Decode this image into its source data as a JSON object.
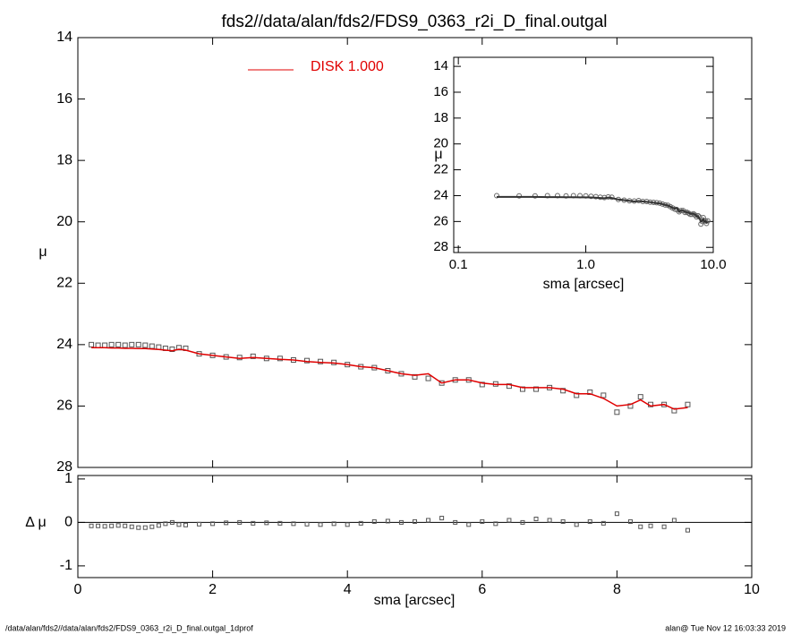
{
  "chart_data": [
    {
      "type": "line",
      "title": "fds2//data/alan/fds2/FDS9_0363_r2i_D_final.outgal",
      "ylabel": "μ",
      "x": [
        0.2,
        0.3,
        0.4,
        0.5,
        0.6,
        0.7,
        0.8,
        0.9,
        1.0,
        1.1,
        1.2,
        1.3,
        1.4,
        1.5,
        1.6,
        1.8,
        2.0,
        2.2,
        2.4,
        2.6,
        2.8,
        3.0,
        3.2,
        3.4,
        3.6,
        3.8,
        4.0,
        4.2,
        4.4,
        4.6,
        4.8,
        5.0,
        5.2,
        5.4,
        5.6,
        5.8,
        6.0,
        6.2,
        6.4,
        6.6,
        6.8,
        7.0,
        7.2,
        7.4,
        7.6,
        7.8,
        8.0,
        8.2,
        8.35,
        8.5,
        8.7,
        8.85,
        9.05
      ],
      "series": [
        {
          "color": "#555555",
          "marker": "square",
          "values": [
            24.0,
            24.02,
            24.02,
            24.0,
            24.0,
            24.02,
            24.0,
            24.0,
            24.02,
            24.05,
            24.08,
            24.12,
            24.15,
            24.1,
            24.12,
            24.3,
            24.35,
            24.4,
            24.42,
            24.38,
            24.45,
            24.45,
            24.5,
            24.52,
            24.55,
            24.58,
            24.65,
            24.72,
            24.75,
            24.85,
            24.95,
            25.05,
            25.1,
            25.25,
            25.15,
            25.15,
            25.3,
            25.28,
            25.35,
            25.45,
            25.45,
            25.4,
            25.5,
            25.65,
            25.55,
            25.65,
            26.2,
            26.0,
            25.7,
            25.95,
            25.95,
            26.15,
            25.95
          ]
        },
        {
          "name": "DISK  1.000",
          "color": "#e00000",
          "marker": "line",
          "values": [
            24.1,
            24.1,
            24.1,
            24.11,
            24.11,
            24.12,
            24.12,
            24.13,
            24.13,
            24.14,
            24.16,
            24.18,
            24.2,
            24.15,
            24.18,
            24.3,
            24.35,
            24.4,
            24.45,
            24.42,
            24.45,
            24.48,
            24.5,
            24.55,
            24.58,
            24.6,
            24.65,
            24.72,
            24.75,
            24.85,
            24.95,
            25.0,
            24.95,
            25.25,
            25.15,
            25.15,
            25.25,
            25.3,
            25.3,
            25.4,
            25.4,
            25.4,
            25.45,
            25.6,
            25.6,
            25.75,
            26.0,
            25.95,
            25.8,
            26.0,
            25.95,
            26.1,
            26.05
          ]
        }
      ],
      "xlim": [
        0,
        10
      ],
      "ylim": [
        14,
        28
      ],
      "yticks": [
        14,
        16,
        18,
        20,
        22,
        24,
        26,
        28
      ],
      "inverted_y": true
    },
    {
      "type": "scatter",
      "xlabel": "sma [arcsec]",
      "ylabel": "Δ μ",
      "color": "#555555",
      "values": [
        -0.08,
        -0.08,
        -0.09,
        -0.08,
        -0.07,
        -0.08,
        -0.1,
        -0.12,
        -0.12,
        -0.1,
        -0.07,
        -0.03,
        0.0,
        -0.05,
        -0.06,
        -0.04,
        -0.03,
        -0.01,
        0.0,
        -0.02,
        -0.01,
        -0.02,
        -0.03,
        -0.04,
        -0.05,
        -0.03,
        -0.05,
        -0.02,
        0.02,
        0.03,
        0.0,
        0.02,
        0.05,
        0.1,
        0.0,
        -0.05,
        0.02,
        -0.03,
        0.05,
        0.0,
        0.08,
        0.05,
        0.02,
        -0.05,
        0.02,
        -0.02,
        0.2,
        0.02,
        -0.1,
        -0.08,
        -0.1,
        0.05,
        -0.18
      ],
      "xlim": [
        0,
        10
      ],
      "xticks": [
        0,
        2,
        4,
        6,
        8,
        10
      ],
      "ylim": [
        -1.27,
        1.08
      ],
      "yticks": [
        -1,
        0,
        1
      ],
      "reference_line": 0
    },
    {
      "type": "scatter",
      "xlabel": "sma [arcsec]",
      "ylabel": "μ",
      "log_x": true,
      "xlim": [
        0.092,
        10
      ],
      "xticks": [
        0.1,
        {
          "value": 1,
          "label": "1.0"
        },
        {
          "value": 10,
          "label": "10.0"
        }
      ],
      "ylim": [
        13.3,
        28.4
      ],
      "yticks": [
        14,
        16,
        18,
        20,
        22,
        24,
        26,
        28
      ],
      "inverted_y": true
    }
  ],
  "footer": {
    "left": "/data/alan/fds2//data/alan/fds2/FDS9_0363_r2i_D_final.outgal_1dprof",
    "right": "alan@  Tue Nov 12 16:03:33 2019"
  }
}
